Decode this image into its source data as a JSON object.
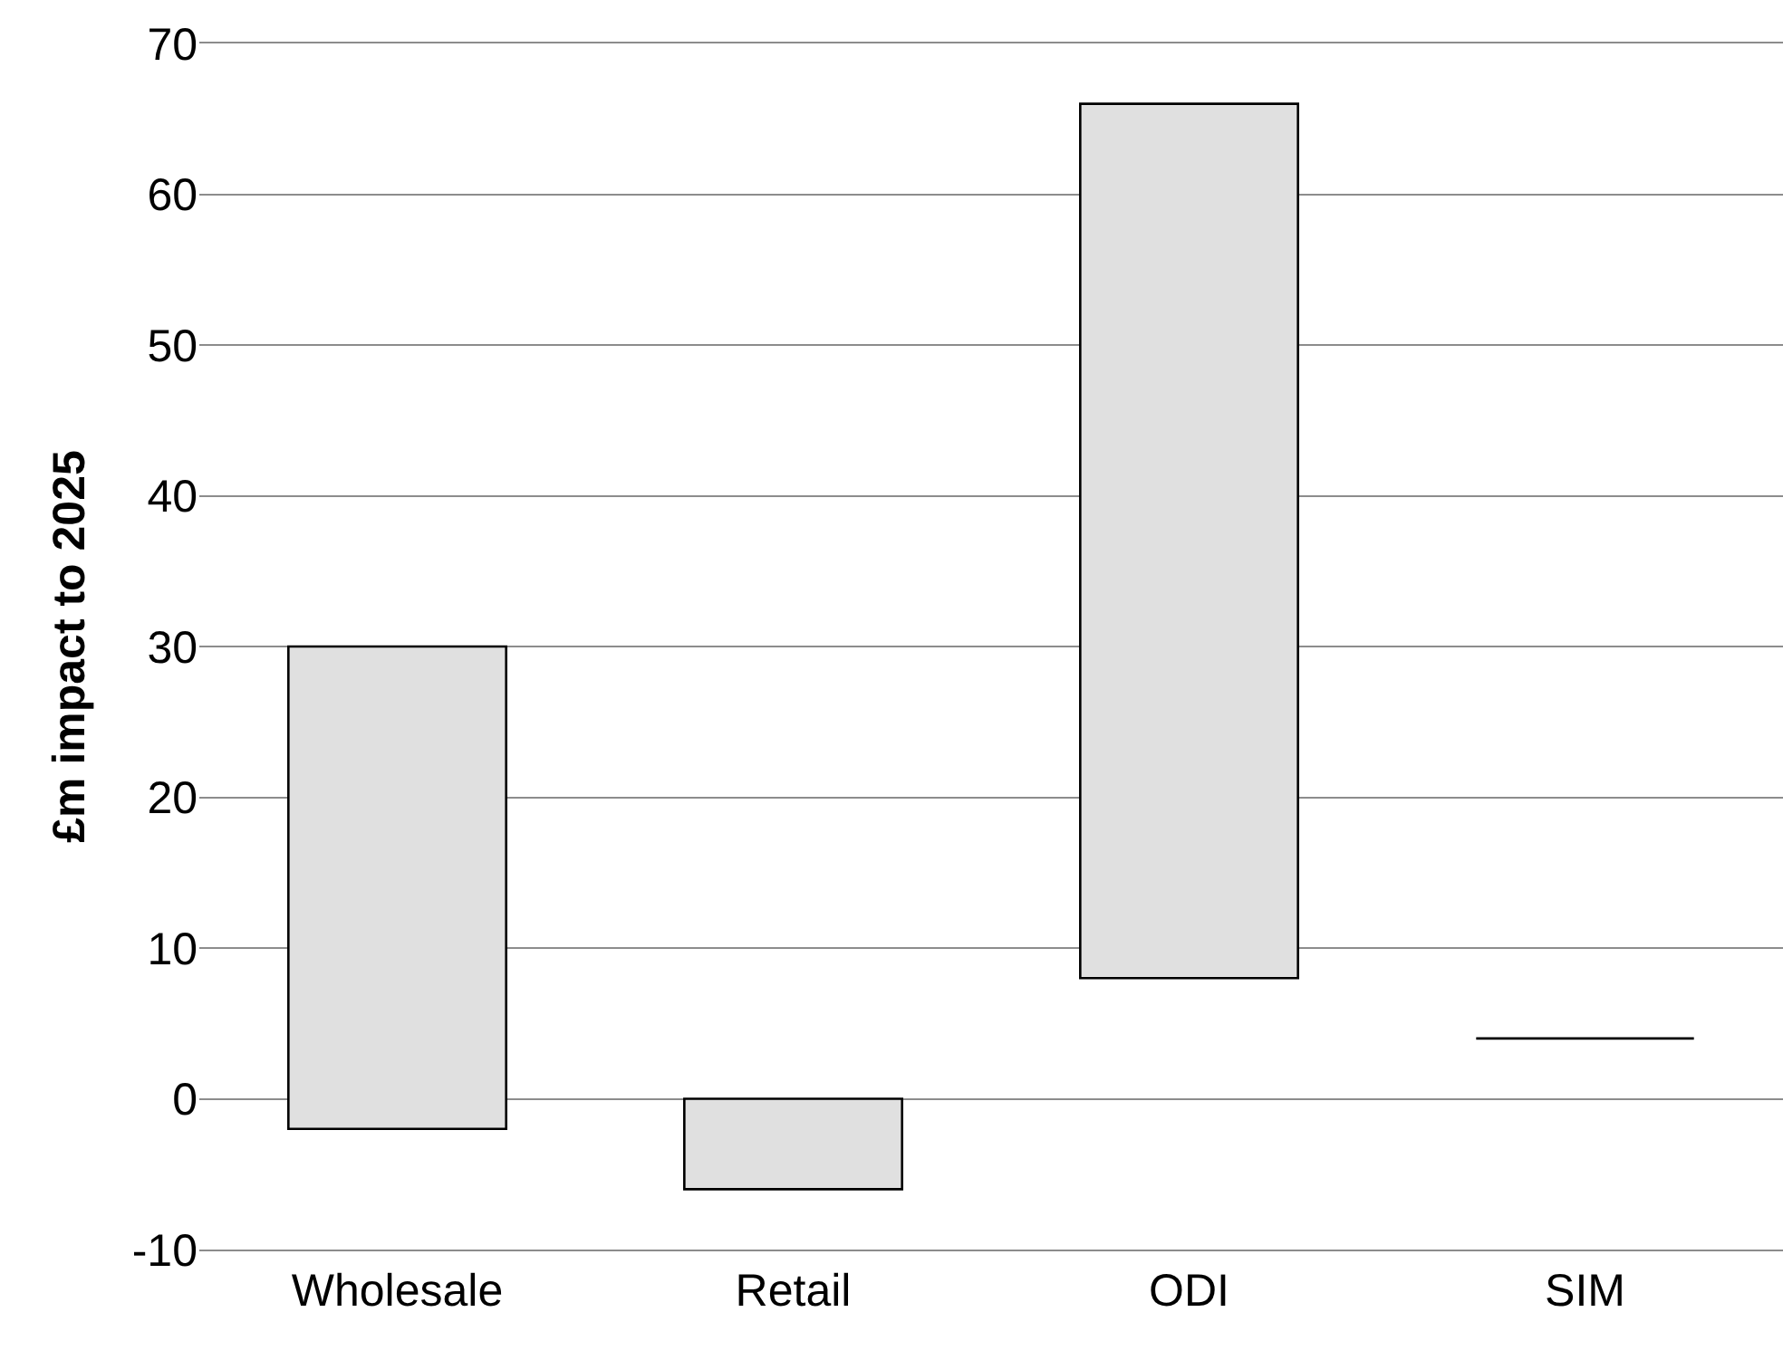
{
  "chart_data": {
    "type": "bar",
    "ylabel": "£m impact to 2025",
    "categories": [
      "Wholesale",
      "Retail",
      "ODI",
      "SIM"
    ],
    "values": [
      32,
      -6,
      58,
      0
    ],
    "base": [
      -2,
      0,
      8,
      4
    ],
    "colors": [
      "#e0e0e0",
      "#e0e0e0",
      "#e0e0e0",
      "#000000"
    ],
    "ylim": [
      -10,
      70
    ],
    "yticks": [
      -10,
      0,
      10,
      20,
      30,
      40,
      50,
      60,
      70
    ],
    "grid": "y",
    "legend": false
  }
}
